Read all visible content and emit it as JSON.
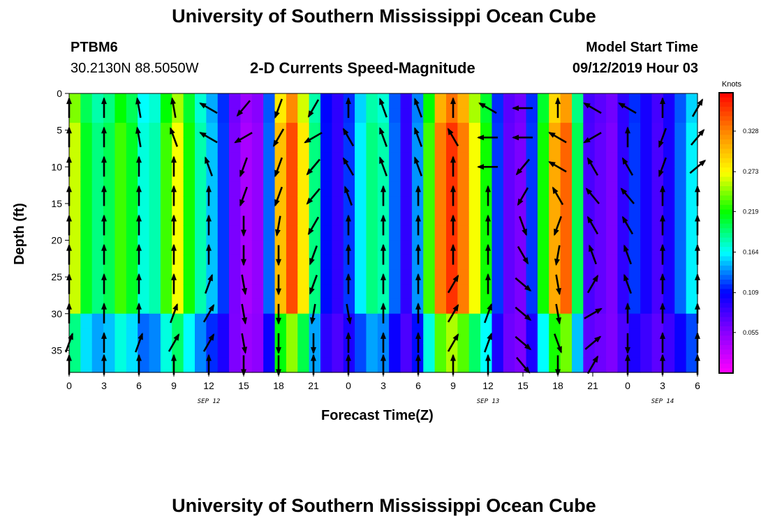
{
  "page": {
    "title_top": "University of Southern Mississippi Ocean Cube",
    "title_bottom": "University of Southern Mississippi Ocean Cube",
    "station_name": "PTBM6",
    "station_coords": "30.2130N 88.5050W",
    "plot_title": "2-D Currents Speed-Magnitude",
    "model_start_label": "Model Start Time",
    "model_start_value": "09/12/2019 Hour 03"
  },
  "chart_data": {
    "type": "heatmap",
    "title": "2-D Currents Speed-Magnitude",
    "xlabel": "Forecast Time(Z)",
    "ylabel": "Depth (ft)",
    "x_tick_labels": [
      "0",
      "3",
      "6",
      "9",
      "12",
      "15",
      "18",
      "21",
      "0",
      "3",
      "6",
      "9",
      "12",
      "15",
      "18",
      "21",
      "0",
      "3",
      "6"
    ],
    "x_date_labels": [
      "SEP 12",
      "SEP 13",
      "SEP 14"
    ],
    "y_ticks": [
      0,
      5,
      10,
      15,
      20,
      25,
      30,
      35
    ],
    "ylim": [
      0,
      38
    ],
    "y_inverted": true,
    "colorbar": {
      "unit_label": "Knots",
      "tick_labels": [
        "0.328",
        "0.273",
        "0.219",
        "0.164",
        "0.109",
        "0.055"
      ],
      "tick_values": [
        0.328,
        0.273,
        0.219,
        0.164,
        0.109,
        0.055
      ],
      "range": [
        0.0,
        0.38
      ],
      "colors": [
        "#ff00ff",
        "#8a00ff",
        "#0000ff",
        "#00ffff",
        "#00ff00",
        "#ffff00",
        "#ff8800",
        "#ff0000"
      ]
    },
    "speed_profile": {
      "hours": [
        0,
        1,
        2,
        3,
        4,
        5,
        6,
        7,
        8,
        9,
        10,
        11,
        12,
        13,
        14,
        15,
        16,
        17,
        18,
        19,
        20,
        21,
        22,
        23,
        24,
        25,
        26,
        27,
        28,
        29,
        30,
        31,
        32,
        33,
        34,
        35,
        36,
        37,
        38,
        39,
        40,
        41,
        42,
        43,
        44,
        45,
        46,
        47,
        48,
        49,
        50,
        51,
        52,
        53,
        54
      ],
      "speed_knots": [
        0.26,
        0.21,
        0.19,
        0.2,
        0.23,
        0.21,
        0.17,
        0.18,
        0.23,
        0.27,
        0.22,
        0.18,
        0.15,
        0.12,
        0.06,
        0.04,
        0.05,
        0.13,
        0.3,
        0.35,
        0.28,
        0.19,
        0.11,
        0.09,
        0.12,
        0.16,
        0.19,
        0.18,
        0.13,
        0.09,
        0.14,
        0.23,
        0.33,
        0.36,
        0.33,
        0.27,
        0.22,
        0.12,
        0.07,
        0.06,
        0.12,
        0.22,
        0.31,
        0.34,
        0.2,
        0.08,
        0.07,
        0.06,
        0.09,
        0.12,
        0.1,
        0.08,
        0.1,
        0.13,
        0.16
      ]
    },
    "vector_columns_hours": [
      0,
      3,
      6,
      9,
      12,
      15,
      18,
      21,
      24,
      27,
      30,
      33,
      36,
      39,
      42,
      45,
      48,
      51,
      54
    ],
    "vector_rows_depth_ft": [
      2,
      6,
      10,
      14,
      18,
      22,
      26,
      30,
      34,
      37
    ],
    "vector_direction_deg": [
      [
        0,
        0,
        350,
        350,
        300,
        220,
        200,
        210,
        0,
        340,
        340,
        0,
        300,
        270,
        0,
        300,
        300,
        0,
        30
      ],
      [
        0,
        0,
        350,
        340,
        300,
        240,
        210,
        240,
        330,
        340,
        340,
        330,
        270,
        270,
        300,
        240,
        0,
        200,
        40
      ],
      [
        0,
        0,
        0,
        0,
        340,
        200,
        200,
        220,
        330,
        340,
        340,
        0,
        270,
        220,
        300,
        330,
        330,
        200,
        50
      ],
      [
        0,
        0,
        0,
        0,
        0,
        200,
        200,
        220,
        340,
        0,
        0,
        0,
        0,
        210,
        330,
        320,
        320,
        0,
        0
      ],
      [
        0,
        0,
        0,
        0,
        0,
        180,
        190,
        210,
        0,
        0,
        0,
        0,
        0,
        160,
        200,
        330,
        330,
        0,
        0
      ],
      [
        0,
        0,
        0,
        0,
        0,
        180,
        180,
        200,
        0,
        0,
        0,
        0,
        0,
        150,
        190,
        340,
        340,
        0,
        0
      ],
      [
        0,
        0,
        0,
        0,
        20,
        170,
        180,
        200,
        0,
        0,
        0,
        30,
        0,
        130,
        170,
        30,
        340,
        0,
        0
      ],
      [
        0,
        0,
        0,
        20,
        30,
        170,
        180,
        190,
        170,
        0,
        0,
        30,
        20,
        130,
        170,
        60,
        0,
        0,
        0
      ],
      [
        20,
        0,
        20,
        30,
        30,
        170,
        180,
        180,
        0,
        0,
        0,
        30,
        20,
        130,
        160,
        50,
        180,
        0,
        0
      ],
      [
        0,
        0,
        0,
        0,
        0,
        180,
        180,
        0,
        0,
        0,
        0,
        0,
        0,
        140,
        180,
        30,
        0,
        0,
        0
      ]
    ]
  }
}
